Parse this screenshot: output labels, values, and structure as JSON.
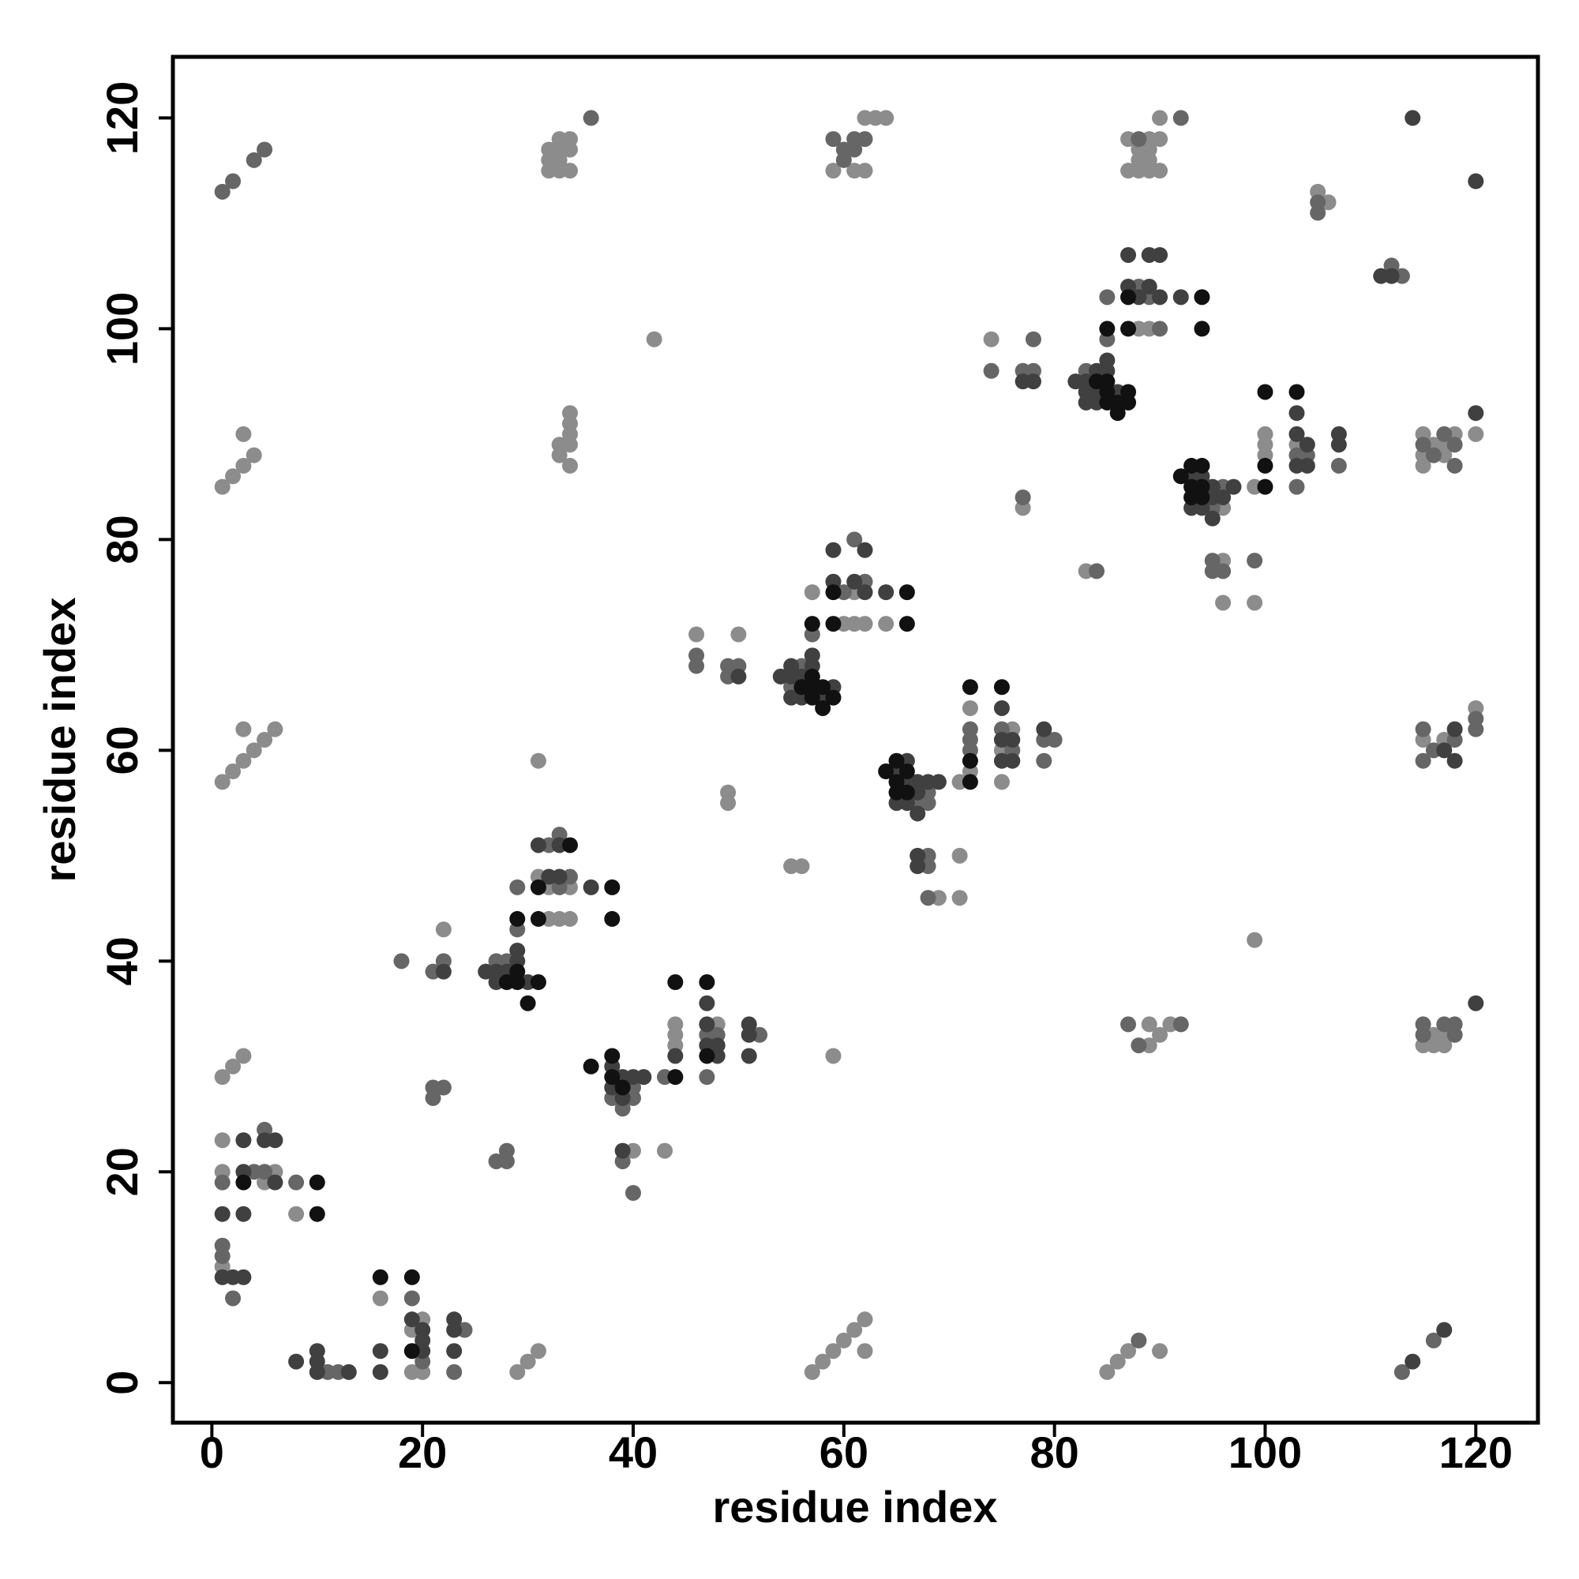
{
  "chart_data": {
    "type": "scatter",
    "xlabel": "residue index",
    "ylabel": "residue index",
    "xlim": [
      -3.7,
      125.9
    ],
    "ylim": [
      -3.8,
      125.8
    ],
    "xticks": [
      0,
      20,
      40,
      60,
      80,
      100,
      120
    ],
    "yticks": [
      0,
      20,
      40,
      60,
      80,
      100,
      120
    ],
    "series": [
      {
        "color": "#8c8c8c",
        "x": [
          1,
          1,
          1,
          5,
          6,
          8,
          16,
          19,
          19,
          20,
          20,
          29,
          30,
          31,
          22,
          31,
          31,
          32,
          32,
          33,
          34,
          34,
          40,
          43,
          44,
          44,
          44,
          48,
          1,
          2,
          3,
          1,
          2,
          3,
          3,
          4,
          5,
          6,
          1,
          2,
          3,
          3,
          4,
          33,
          33,
          34,
          34,
          34,
          34,
          34,
          32,
          32,
          32,
          33,
          33,
          33,
          33,
          34,
          34,
          34,
          42,
          46,
          50,
          49,
          49,
          57,
          60,
          61,
          61,
          62,
          64,
          55,
          56,
          59,
          57,
          58,
          59,
          60,
          61,
          62,
          62,
          59,
          61,
          62,
          62,
          63,
          64,
          69,
          71,
          71,
          71,
          72,
          72,
          75,
          75,
          76,
          74,
          77,
          88,
          89,
          83,
          87,
          87,
          88,
          88,
          88,
          89,
          89,
          89,
          89,
          90,
          90,
          90,
          85,
          86,
          87,
          90,
          89,
          89,
          90,
          91,
          96,
          96,
          96,
          99,
          99,
          100,
          100,
          100,
          99,
          103,
          105,
          106,
          115,
          116,
          116,
          117,
          117,
          115,
          117,
          120,
          115,
          115,
          115,
          116,
          117,
          117,
          118,
          120
        ],
        "y": [
          23,
          20,
          11,
          19,
          20,
          16,
          8,
          5,
          1,
          6,
          1,
          1,
          2,
          3,
          43,
          48,
          59,
          47,
          44,
          44,
          47,
          44,
          22,
          22,
          34,
          33,
          32,
          34,
          29,
          30,
          31,
          57,
          58,
          59,
          62,
          60,
          61,
          62,
          85,
          86,
          87,
          90,
          88,
          88,
          89,
          90,
          89,
          87,
          91,
          92,
          115,
          116,
          117,
          115,
          116,
          117,
          118,
          115,
          117,
          118,
          99,
          71,
          71,
          56,
          55,
          75,
          72,
          75,
          72,
          72,
          72,
          49,
          49,
          31,
          1,
          2,
          3,
          4,
          5,
          6,
          3,
          115,
          115,
          115,
          120,
          120,
          120,
          46,
          50,
          46,
          57,
          64,
          58,
          60,
          57,
          62,
          99,
          83,
          100,
          100,
          77,
          118,
          115,
          117,
          116,
          115,
          118,
          117,
          116,
          115,
          118,
          115,
          120,
          1,
          2,
          3,
          3,
          34,
          32,
          33,
          34,
          83,
          78,
          74,
          74,
          85,
          90,
          89,
          88,
          42,
          89,
          113,
          112,
          32,
          33,
          32,
          33,
          32,
          61,
          61,
          64,
          90,
          88,
          87,
          89,
          89,
          88,
          90,
          90
        ]
      },
      {
        "color": "#666666",
        "x": [
          1,
          1,
          1,
          2,
          4,
          5,
          5,
          8,
          11,
          12,
          19,
          20,
          23,
          24,
          21,
          21,
          22,
          18,
          21,
          22,
          27,
          28,
          28,
          27,
          28,
          29,
          29,
          32,
          33,
          33,
          34,
          38,
          39,
          39,
          40,
          40,
          40,
          43,
          47,
          47,
          48,
          52,
          1,
          2,
          4,
          5,
          36,
          46,
          46,
          49,
          49,
          50,
          55,
          56,
          57,
          60,
          61,
          62,
          59,
          60,
          60,
          61,
          61,
          62,
          67,
          68,
          68,
          68,
          68,
          68,
          72,
          72,
          72,
          75,
          76,
          79,
          79,
          80,
          74,
          77,
          78,
          78,
          77,
          83,
          85,
          85,
          88,
          89,
          90,
          84,
          88,
          92,
          88,
          87,
          88,
          92,
          95,
          96,
          95,
          95,
          96,
          99,
          103,
          103,
          104,
          107,
          105,
          105,
          112,
          113,
          113,
          116,
          115,
          115,
          117,
          118,
          118,
          115,
          115,
          116,
          118,
          120,
          120,
          115,
          116,
          117,
          118,
          118
        ],
        "y": [
          19,
          13,
          12,
          8,
          20,
          24,
          20,
          19,
          1,
          1,
          8,
          2,
          1,
          5,
          28,
          27,
          28,
          40,
          39,
          40,
          21,
          22,
          21,
          40,
          40,
          43,
          47,
          51,
          52,
          47,
          48,
          27,
          26,
          21,
          28,
          27,
          18,
          29,
          33,
          29,
          33,
          33,
          113,
          114,
          116,
          117,
          120,
          69,
          68,
          68,
          67,
          68,
          66,
          68,
          71,
          75,
          80,
          76,
          118,
          117,
          116,
          117,
          118,
          118,
          55,
          56,
          55,
          50,
          49,
          46,
          62,
          61,
          60,
          62,
          60,
          61,
          59,
          61,
          96,
          96,
          99,
          96,
          84,
          96,
          99,
          103,
          104,
          103,
          100,
          77,
          118,
          120,
          4,
          34,
          32,
          34,
          83,
          85,
          78,
          77,
          77,
          78,
          88,
          85,
          88,
          87,
          112,
          111,
          106,
          105,
          1,
          4,
          34,
          33,
          34,
          34,
          33,
          62,
          59,
          60,
          61,
          63,
          62,
          89,
          88,
          90,
          89,
          87
        ]
      },
      {
        "color": "#404040",
        "x": [
          1,
          1,
          2,
          3,
          3,
          3,
          3,
          5,
          6,
          6,
          8,
          10,
          10,
          10,
          13,
          16,
          16,
          19,
          20,
          20,
          20,
          23,
          23,
          23,
          22,
          26,
          27,
          27,
          28,
          29,
          29,
          30,
          31,
          32,
          33,
          33,
          36,
          38,
          38,
          39,
          39,
          39,
          40,
          41,
          44,
          47,
          47,
          47,
          48,
          48,
          51,
          51,
          51,
          50,
          54,
          55,
          55,
          55,
          56,
          56,
          57,
          57,
          58,
          59,
          59,
          59,
          61,
          62,
          62,
          64,
          65,
          65,
          66,
          66,
          66,
          67,
          67,
          67,
          68,
          69,
          67,
          67,
          75,
          75,
          75,
          76,
          76,
          79,
          77,
          78,
          82,
          83,
          83,
          83,
          84,
          84,
          84,
          85,
          85,
          86,
          87,
          87,
          88,
          89,
          89,
          90,
          90,
          92,
          93,
          93,
          94,
          94,
          95,
          95,
          95,
          96,
          97,
          103,
          103,
          103,
          104,
          104,
          107,
          107,
          111,
          112,
          114,
          120,
          114,
          117,
          120,
          117,
          118,
          118,
          120
        ],
        "y": [
          16,
          10,
          10,
          10,
          16,
          20,
          23,
          23,
          23,
          19,
          2,
          3,
          2,
          1,
          1,
          3,
          1,
          6,
          5,
          4,
          3,
          6,
          5,
          3,
          39,
          39,
          39,
          38,
          39,
          41,
          40,
          38,
          51,
          48,
          51,
          48,
          47,
          30,
          28,
          29,
          27,
          22,
          29,
          29,
          31,
          36,
          34,
          32,
          32,
          31,
          34,
          33,
          31,
          67,
          67,
          68,
          67,
          65,
          67,
          65,
          69,
          68,
          65,
          66,
          76,
          79,
          76,
          79,
          75,
          75,
          58,
          55,
          59,
          57,
          55,
          57,
          56,
          54,
          57,
          57,
          50,
          49,
          64,
          61,
          59,
          61,
          59,
          62,
          95,
          95,
          95,
          95,
          94,
          93,
          96,
          94,
          93,
          97,
          96,
          94,
          104,
          107,
          103,
          107,
          104,
          107,
          103,
          103,
          86,
          83,
          86,
          83,
          85,
          84,
          82,
          84,
          85,
          92,
          90,
          87,
          89,
          87,
          90,
          89,
          105,
          105,
          120,
          114,
          2,
          5,
          36,
          60,
          62,
          59,
          92
        ]
      },
      {
        "color": "#111111",
        "x": [
          3,
          10,
          10,
          16,
          19,
          19,
          28,
          29,
          29,
          29,
          30,
          31,
          31,
          31,
          34,
          38,
          38,
          36,
          38,
          38,
          39,
          44,
          44,
          47,
          47,
          56,
          57,
          57,
          57,
          58,
          58,
          59,
          57,
          59,
          59,
          66,
          66,
          64,
          65,
          65,
          65,
          66,
          66,
          72,
          72,
          72,
          75,
          84,
          85,
          85,
          85,
          86,
          86,
          87,
          87,
          85,
          87,
          87,
          94,
          94,
          92,
          93,
          93,
          93,
          94,
          94,
          94,
          100,
          100,
          100,
          103
        ],
        "y": [
          19,
          19,
          16,
          10,
          10,
          3,
          38,
          39,
          38,
          44,
          36,
          38,
          44,
          47,
          51,
          47,
          44,
          30,
          31,
          29,
          28,
          38,
          29,
          38,
          31,
          66,
          67,
          66,
          65,
          66,
          64,
          65,
          72,
          72,
          75,
          75,
          72,
          58,
          59,
          57,
          56,
          58,
          56,
          66,
          59,
          57,
          66,
          95,
          95,
          94,
          93,
          93,
          92,
          94,
          93,
          100,
          100,
          103,
          103,
          100,
          86,
          87,
          85,
          84,
          87,
          85,
          84,
          94,
          87,
          85,
          94
        ]
      }
    ]
  }
}
